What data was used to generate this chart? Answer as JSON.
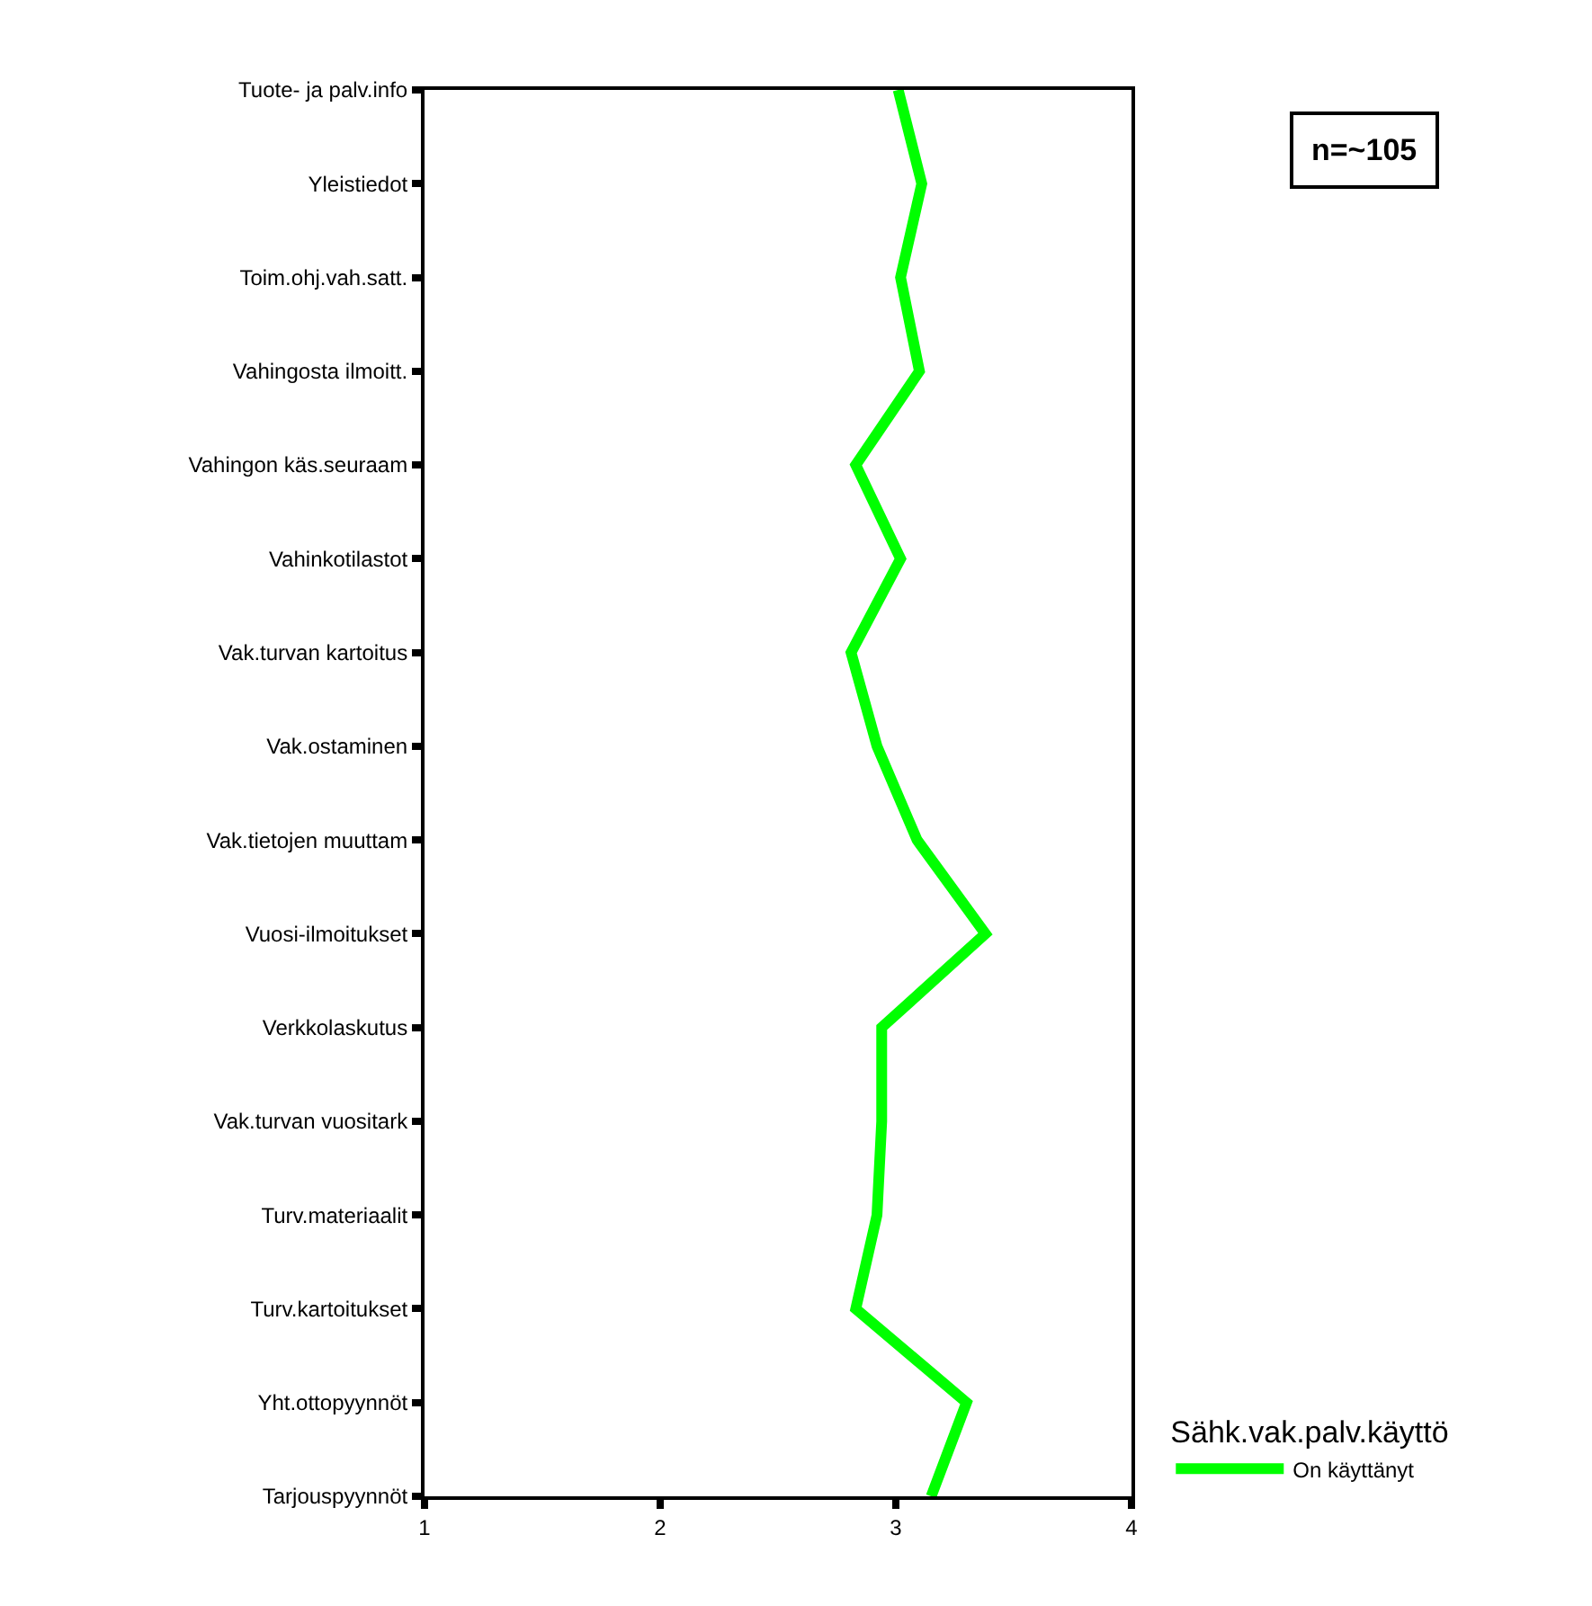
{
  "chart_data": {
    "type": "line",
    "orientation": "horizontal",
    "categories": [
      "Tuote- ja palv.info",
      "Yleistiedot",
      "Toim.ohj.vah.satt.",
      "Vahingosta ilmoitt.",
      "Vahingon käs.seuraam",
      "Vahinkotilastot",
      "Vak.turvan kartoitus",
      "Vak.ostaminen",
      "Vak.tietojen muuttam",
      "Vuosi-ilmoitukset",
      "Verkkolaskutus",
      "Vak.turvan vuositark",
      "Turv.materiaalit",
      "Turv.kartoitukset",
      "Yht.ottopyynnöt",
      "Tarjouspyynnöt"
    ],
    "series": [
      {
        "name": "On käyttänyt",
        "color": "#00ff00",
        "values": [
          3.01,
          3.11,
          3.02,
          3.1,
          2.83,
          3.02,
          2.81,
          2.92,
          3.09,
          3.38,
          2.94,
          2.94,
          2.92,
          2.83,
          3.3,
          3.15
        ]
      }
    ],
    "xlim": [
      1,
      4
    ],
    "xticks": [
      1,
      2,
      3,
      4
    ],
    "legend": "right",
    "legend_title": "Sähk.vak.palv.käyttö",
    "marker": "none",
    "line_style": "solid",
    "annotations": [
      "n=~105"
    ]
  }
}
